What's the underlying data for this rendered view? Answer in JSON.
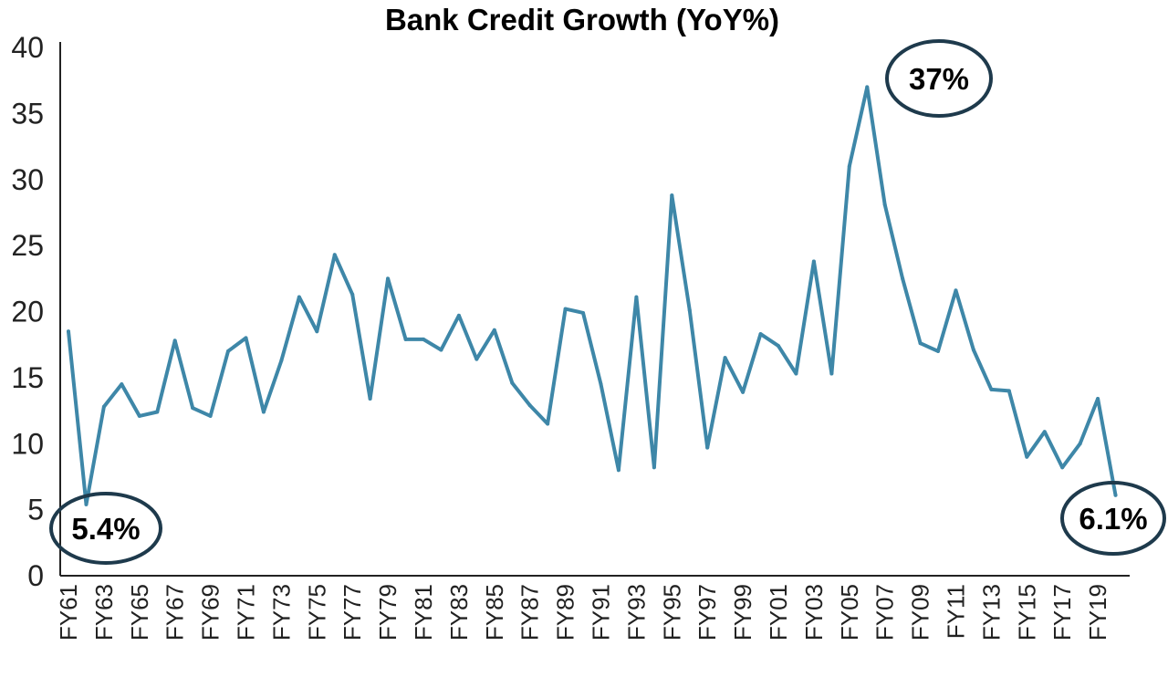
{
  "colors": {
    "series": "#3e87a8",
    "annotation_ring": "#1e3a4c",
    "axis": "#222222"
  },
  "chart_data": {
    "type": "line",
    "title": "Bank Credit Growth (YoY%)",
    "xlabel": "",
    "ylabel": "",
    "ylim": [
      0,
      40
    ],
    "yticks": [
      0,
      5,
      10,
      15,
      20,
      25,
      30,
      35,
      40
    ],
    "grid": false,
    "categories": [
      "FY61",
      "FY62",
      "FY63",
      "FY64",
      "FY65",
      "FY66",
      "FY67",
      "FY68",
      "FY69",
      "FY70",
      "FY71",
      "FY72",
      "FY73",
      "FY74",
      "FY75",
      "FY76",
      "FY77",
      "FY78",
      "FY79",
      "FY80",
      "FY81",
      "FY82",
      "FY83",
      "FY84",
      "FY85",
      "FY86",
      "FY87",
      "FY88",
      "FY89",
      "FY90",
      "FY91",
      "FY92",
      "FY93",
      "FY94",
      "FY95",
      "FY96",
      "FY97",
      "FY98",
      "FY99",
      "FY00",
      "FY01",
      "FY02",
      "FY03",
      "FY04",
      "FY05",
      "FY06",
      "FY07",
      "FY08",
      "FY09",
      "FY10",
      "FY11",
      "FY12",
      "FY13",
      "FY14",
      "FY15",
      "FY16",
      "FY17",
      "FY18",
      "FY19",
      "FY20"
    ],
    "tick_labels": [
      "FY61",
      "FY63",
      "FY65",
      "FY67",
      "FY69",
      "FY71",
      "FY73",
      "FY75",
      "FY77",
      "FY79",
      "FY81",
      "FY83",
      "FY85",
      "FY87",
      "FY89",
      "FY91",
      "FY93",
      "FY95",
      "FY97",
      "FY99",
      "FY01",
      "FY03",
      "FY05",
      "FY07",
      "FY09",
      "FY11",
      "FY13",
      "FY15",
      "FY17",
      "FY19"
    ],
    "series": [
      {
        "values": [
          18.5,
          5.4,
          12.8,
          14.5,
          12.1,
          12.4,
          17.8,
          12.7,
          12.1,
          17.0,
          18.0,
          12.4,
          16.3,
          21.1,
          18.5,
          24.3,
          21.3,
          13.4,
          22.5,
          17.9,
          17.9,
          17.1,
          19.7,
          16.4,
          18.6,
          14.6,
          12.9,
          11.5,
          20.2,
          19.9,
          14.5,
          8.0,
          21.1,
          8.2,
          28.8,
          20.1,
          9.7,
          16.5,
          13.9,
          18.3,
          17.4,
          15.3,
          23.8,
          15.3,
          31.0,
          37.0,
          28.1,
          22.5,
          17.6,
          17.0,
          21.6,
          17.1,
          14.1,
          14.0,
          9.0,
          10.9,
          8.2,
          10.0,
          13.4,
          6.1
        ]
      }
    ],
    "annotations": [
      {
        "label": "5.4%",
        "category": "FY62"
      },
      {
        "label": "37%",
        "category": "FY06"
      },
      {
        "label": "6.1%",
        "category": "FY20"
      }
    ]
  }
}
